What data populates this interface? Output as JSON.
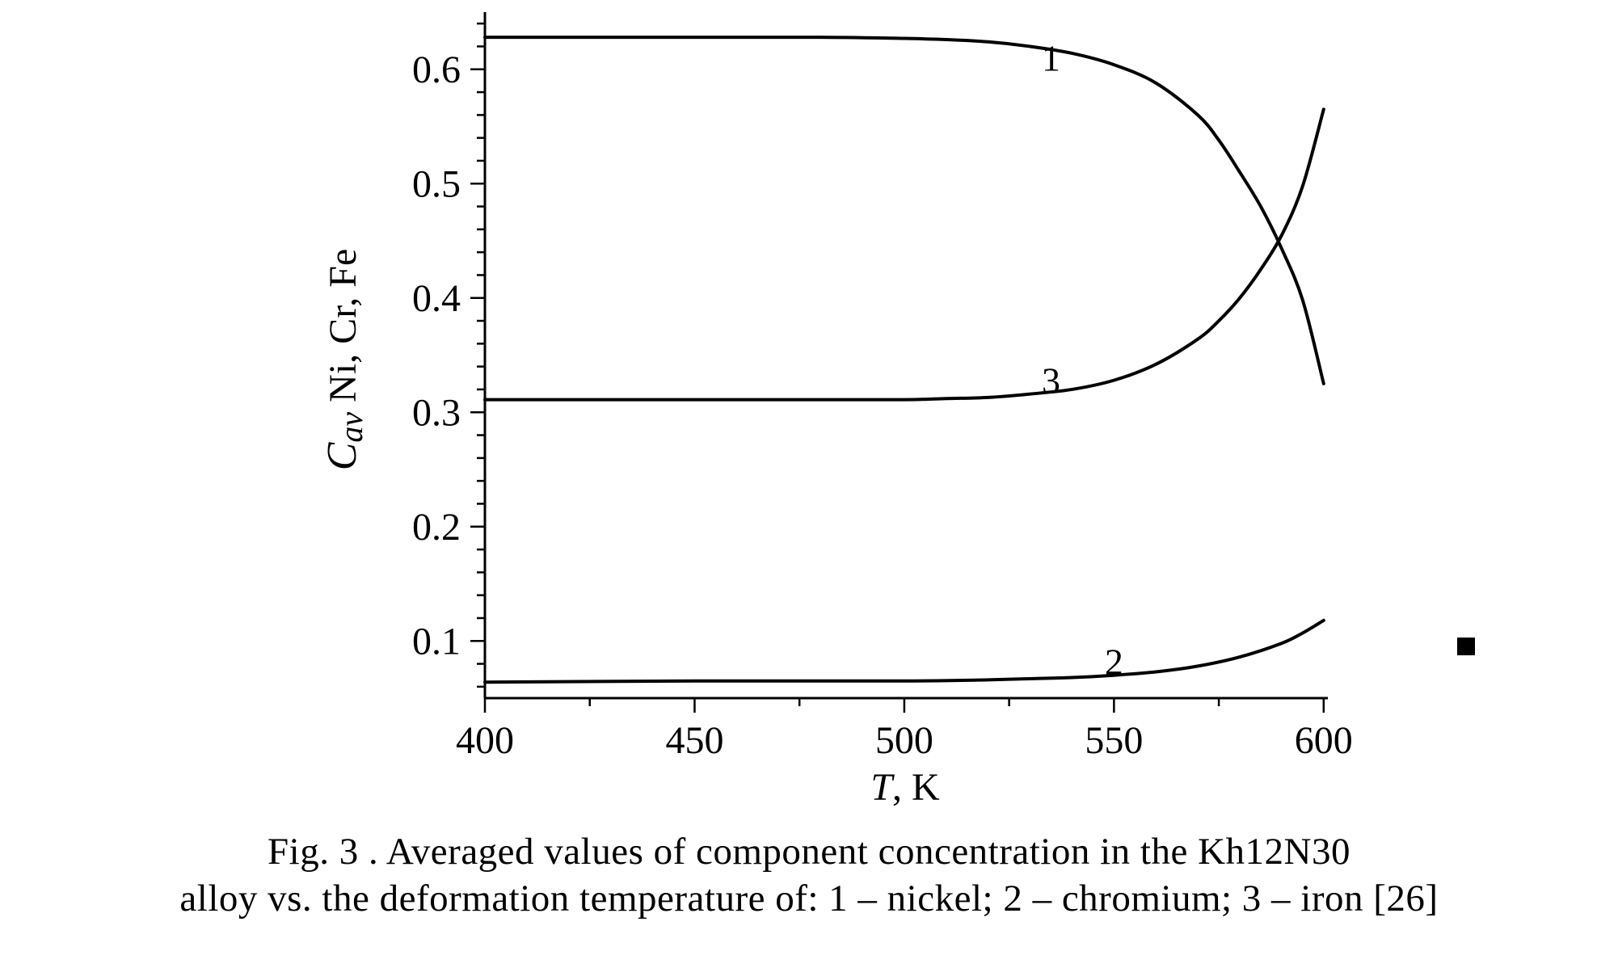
{
  "caption": {
    "line1": "Fig. 3 . Averaged values of component concentration in the Kh12N30",
    "line2": "alloy vs. the deformation temperature of: 1 – nickel; 2 – chromium; 3 – iron [26]"
  },
  "marker_color": "#000000",
  "chart_data": {
    "type": "line",
    "title": "",
    "xlabel": {
      "italic": "T",
      "rest": ", K"
    },
    "ylabel": {
      "italic": "C",
      "sub": "av",
      "rest": " Ni, Cr, Fe"
    },
    "xlim": [
      400,
      601
    ],
    "ylim": [
      0.05,
      0.65
    ],
    "xticks": [
      400,
      450,
      500,
      550,
      600
    ],
    "xtick_labels": [
      "400",
      "450",
      "500",
      "550",
      "600"
    ],
    "yticks": [
      0.1,
      0.2,
      0.3,
      0.4,
      0.5,
      0.6
    ],
    "ytick_labels": [
      "0.1",
      "0.2",
      "0.3",
      "0.4",
      "0.5",
      "0.6"
    ],
    "grid": false,
    "legend": "none",
    "line_color": "#000000",
    "series": [
      {
        "name": "1",
        "label_at": [
          535,
          0.61
        ],
        "x": [
          400,
          450,
          480,
          500,
          510,
          520,
          530,
          540,
          550,
          560,
          570,
          575,
          580,
          585,
          590,
          595,
          600
        ],
        "y": [
          0.628,
          0.628,
          0.628,
          0.627,
          0.626,
          0.624,
          0.62,
          0.614,
          0.604,
          0.588,
          0.56,
          0.538,
          0.51,
          0.48,
          0.443,
          0.398,
          0.325
        ]
      },
      {
        "name": "2",
        "label_at": [
          550,
          0.082
        ],
        "x": [
          400,
          450,
          500,
          520,
          530,
          540,
          550,
          560,
          570,
          580,
          590,
          595,
          600
        ],
        "y": [
          0.064,
          0.065,
          0.065,
          0.066,
          0.067,
          0.068,
          0.07,
          0.073,
          0.078,
          0.086,
          0.098,
          0.107,
          0.118
        ]
      },
      {
        "name": "3",
        "label_at": [
          535,
          0.328
        ],
        "x": [
          400,
          450,
          480,
          500,
          510,
          520,
          530,
          540,
          550,
          560,
          570,
          575,
          580,
          585,
          590,
          595,
          600
        ],
        "y": [
          0.311,
          0.311,
          0.311,
          0.311,
          0.312,
          0.313,
          0.316,
          0.32,
          0.328,
          0.342,
          0.364,
          0.38,
          0.4,
          0.425,
          0.455,
          0.498,
          0.565
        ]
      }
    ]
  }
}
